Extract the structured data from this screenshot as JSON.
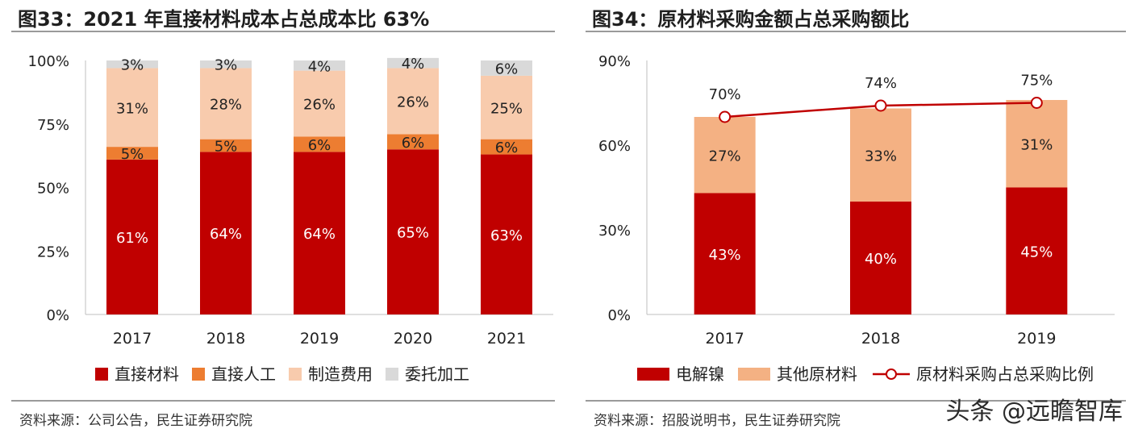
{
  "left": {
    "title": "图33：2021 年直接材料成本占总成本比 63%",
    "source": "资料来源：公司公告，民生证券研究院"
  },
  "right": {
    "title": "图34：原材料采购金额占总采购额比",
    "source": "资料来源：招股说明书，民生证券研究院"
  },
  "watermark": "头条 @远瞻智库",
  "chart_data": [
    {
      "type": "bar",
      "stacked": true,
      "title": "图33：2021 年直接材料成本占总成本比 63%",
      "categories": [
        "2017",
        "2018",
        "2019",
        "2020",
        "2021"
      ],
      "ylim": [
        0,
        100
      ],
      "yticks": [
        "0%",
        "25%",
        "50%",
        "75%",
        "100%"
      ],
      "ytick_values": [
        0,
        25,
        50,
        75,
        100
      ],
      "legend_position": "bottom",
      "series": [
        {
          "name": "直接材料",
          "color": "#C00000",
          "values": [
            61,
            64,
            64,
            65,
            63
          ],
          "labels": [
            "61%",
            "64%",
            "64%",
            "65%",
            "63%"
          ],
          "label_color": "#ffffff"
        },
        {
          "name": "直接人工",
          "color": "#ED7D31",
          "values": [
            5,
            5,
            6,
            6,
            6
          ],
          "labels": [
            "5%",
            "5%",
            "6%",
            "6%",
            "6%"
          ],
          "label_color": "#222222"
        },
        {
          "name": "制造费用",
          "color": "#F8CBAD",
          "values": [
            31,
            28,
            26,
            26,
            25
          ],
          "labels": [
            "31%",
            "28%",
            "26%",
            "26%",
            "25%"
          ],
          "label_color": "#222222"
        },
        {
          "name": "委托加工",
          "color": "#D9D9D9",
          "values": [
            3,
            3,
            4,
            4,
            6
          ],
          "labels": [
            "3%",
            "3%",
            "4%",
            "4%",
            "6%"
          ],
          "label_color": "#222222"
        }
      ]
    },
    {
      "type": "bar",
      "stacked": true,
      "title": "图34：原材料采购金额占总采购额比",
      "categories": [
        "2017",
        "2018",
        "2019"
      ],
      "ylim": [
        0,
        90
      ],
      "yticks": [
        "0%",
        "30%",
        "60%",
        "90%"
      ],
      "ytick_values": [
        0,
        30,
        60,
        90
      ],
      "legend_position": "bottom",
      "series": [
        {
          "name": "电解镍",
          "color": "#C00000",
          "values": [
            43,
            40,
            45
          ],
          "labels": [
            "43%",
            "40%",
            "45%"
          ],
          "label_color": "#ffffff"
        },
        {
          "name": "其他原材料",
          "color": "#F4B183",
          "values": [
            27,
            33,
            31
          ],
          "labels": [
            "27%",
            "33%",
            "31%"
          ],
          "label_color": "#222222"
        }
      ],
      "line_series": {
        "name": "原材料采购占总采购比例",
        "color": "#C00000",
        "values": [
          70,
          74,
          75
        ],
        "labels": [
          "70%",
          "74%",
          "75%"
        ]
      }
    }
  ]
}
